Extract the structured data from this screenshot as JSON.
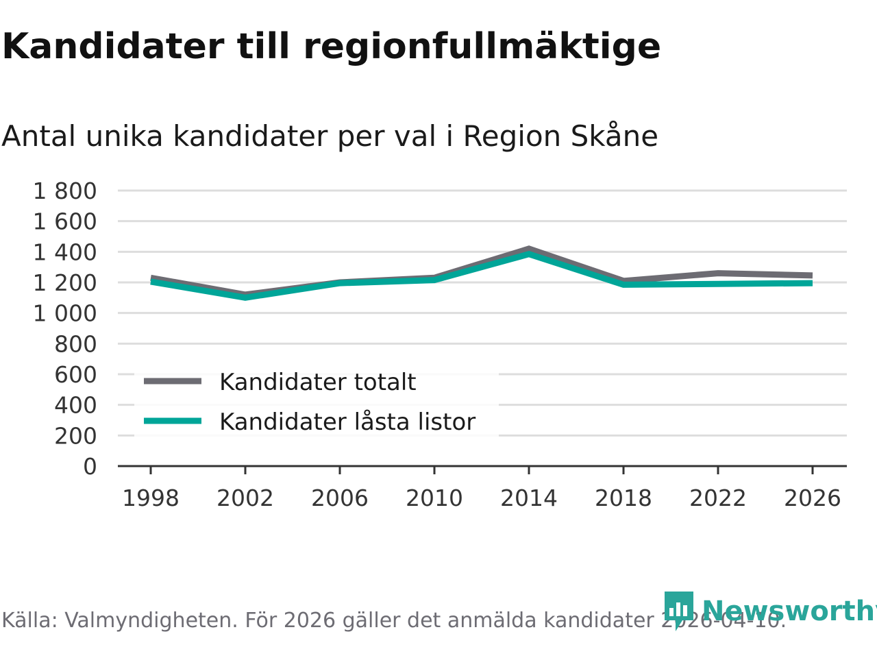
{
  "title": "Kandidater till regionfullmäktige",
  "subtitle": "Antal unika kandidater per val i Region Skåne",
  "source": "Källa: Valmyndigheten. För 2026 gäller det anmälda kandidater 2026-04-10.",
  "brand": "Newsworthy",
  "colors": {
    "series_total": "#6d6c73",
    "series_locked": "#00a598",
    "grid": "#dddddd",
    "axis": "#333333",
    "brand": "#2aa59a"
  },
  "chart_data": {
    "type": "line",
    "x": [
      1998,
      2002,
      2006,
      2010,
      2014,
      2018,
      2022,
      2026
    ],
    "x_tick_labels": [
      "1998",
      "2002",
      "2006",
      "2010",
      "2014",
      "2018",
      "2022",
      "2026"
    ],
    "y_ticks": [
      0,
      200,
      400,
      600,
      800,
      1000,
      1200,
      1400,
      1600,
      1800
    ],
    "y_tick_labels": [
      "0",
      "200",
      "400",
      "600",
      "800",
      "1 000",
      "1 200",
      "1 400",
      "1 600",
      "1 800"
    ],
    "ylim": [
      0,
      1800
    ],
    "grid": true,
    "legend_position": "bottom-left",
    "series": [
      {
        "name": "Kandidater totalt",
        "color": "#6d6c73",
        "values": [
          1230,
          1120,
          1200,
          1230,
          1420,
          1210,
          1260,
          1245
        ]
      },
      {
        "name": "Kandidater låsta listor",
        "color": "#00a598",
        "values": [
          1205,
          1100,
          1195,
          1215,
          1385,
          1185,
          1190,
          1195
        ]
      }
    ]
  }
}
